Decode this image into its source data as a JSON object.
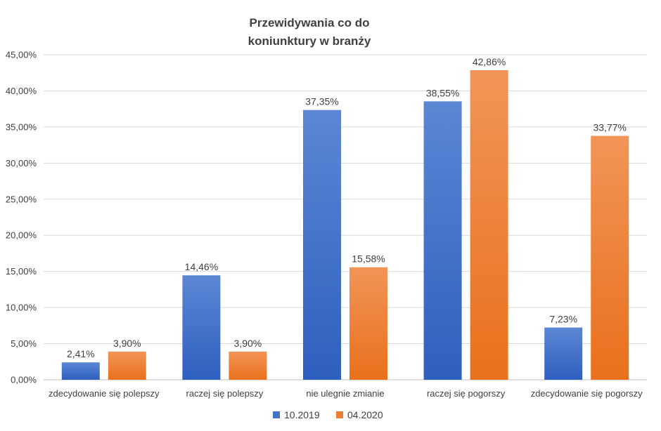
{
  "chart_data": {
    "type": "bar",
    "title_lines": [
      "Przewidywania co do",
      "koniunktury w branży"
    ],
    "categories": [
      "zdecydowanie się polepszy",
      "raczej się polepszy",
      "nie ulegnie zmianie",
      "raczej się pogorszy",
      "zdecydowanie się pogorszy"
    ],
    "series": [
      {
        "name": "10.2019",
        "color": "#4472C4",
        "values": [
          2.41,
          14.46,
          37.35,
          38.55,
          7.23
        ],
        "labels": [
          "2,41%",
          "14,46%",
          "37,35%",
          "38,55%",
          "7,23%"
        ]
      },
      {
        "name": "04.2020",
        "color": "#ED7D31",
        "values": [
          3.9,
          3.9,
          15.58,
          42.86,
          33.77
        ],
        "labels": [
          "3,90%",
          "3,90%",
          "15,58%",
          "42,86%",
          "33,77%"
        ]
      }
    ],
    "ylim": [
      0,
      45
    ],
    "yticks": [
      0,
      5,
      10,
      15,
      20,
      25,
      30,
      35,
      40,
      45
    ],
    "ytick_labels": [
      "0,00%",
      "5,00%",
      "10,00%",
      "15,00%",
      "20,00%",
      "25,00%",
      "30,00%",
      "35,00%",
      "40,00%",
      "45,00%"
    ],
    "grid": true,
    "legend_position": "bottom"
  }
}
